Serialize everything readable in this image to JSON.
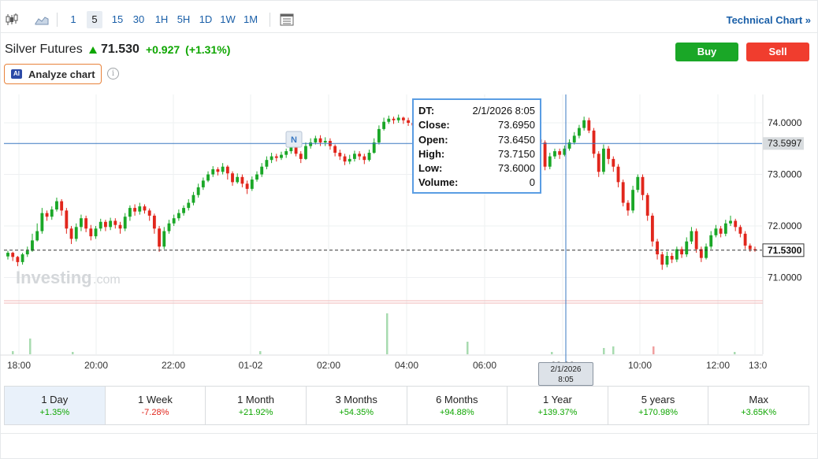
{
  "toolbar": {
    "intervals": [
      {
        "label": "1",
        "active": false
      },
      {
        "label": "5",
        "active": true
      },
      {
        "label": "15",
        "active": false
      },
      {
        "label": "30",
        "active": false
      },
      {
        "label": "1H",
        "active": false
      },
      {
        "label": "5H",
        "active": false
      },
      {
        "label": "1D",
        "active": false
      },
      {
        "label": "1W",
        "active": false
      },
      {
        "label": "1M",
        "active": false
      }
    ],
    "technical_chart_label": "Technical Chart »"
  },
  "header": {
    "name": "Silver Futures",
    "price": "71.530",
    "change": "+0.927",
    "change_pct": "(+1.31%)",
    "buy_label": "Buy",
    "sell_label": "Sell",
    "ai_badge": "AI",
    "analyze_label": "Analyze chart",
    "info_glyph": "i"
  },
  "tooltip": {
    "rows": [
      {
        "k": "DT:",
        "v": "2/1/2026 8:05"
      },
      {
        "k": "Close:",
        "v": "73.6950"
      },
      {
        "k": "Open:",
        "v": "73.6450"
      },
      {
        "k": "High:",
        "v": "73.7150"
      },
      {
        "k": "Low:",
        "v": "73.6000"
      },
      {
        "k": "Volume:",
        "v": "0"
      }
    ]
  },
  "cursor_label": {
    "line1": "2/1/2026",
    "line2": "8:05"
  },
  "chart_data": {
    "type": "candlestick",
    "y_ticks": [
      "74.0000",
      "73.0000",
      "72.0000",
      "71.0000"
    ],
    "y_tick_values": [
      74,
      73,
      72,
      71
    ],
    "ylim": [
      70.55,
      74.55
    ],
    "x_ticks": [
      "18:00",
      "20:00",
      "22:00",
      "01-02",
      "02:00",
      "04:00",
      "06:00",
      "08:00",
      "10:00",
      "12:00",
      "13:0"
    ],
    "cursor_price": "73.5997",
    "cursor_value": 73.5997,
    "last_price": "71.5300",
    "last_value": 71.53,
    "marker_label": "N",
    "watermark": "Investing",
    "watermark_suffix": ".com",
    "candles": [
      [
        71.41,
        71.48,
        71.35,
        71.52
      ],
      [
        71.48,
        71.4,
        71.32,
        71.5
      ],
      [
        71.4,
        71.3,
        71.22,
        71.42
      ],
      [
        71.3,
        71.45,
        71.25,
        71.48
      ],
      [
        71.45,
        71.52,
        71.4,
        71.6
      ],
      [
        71.52,
        71.72,
        71.5,
        71.85
      ],
      [
        71.72,
        71.9,
        71.7,
        72.05
      ],
      [
        71.9,
        72.25,
        71.85,
        72.35
      ],
      [
        72.25,
        72.18,
        72.1,
        72.3
      ],
      [
        72.18,
        72.32,
        72.12,
        72.38
      ],
      [
        72.32,
        72.48,
        72.28,
        72.55
      ],
      [
        72.48,
        72.3,
        72.2,
        72.52
      ],
      [
        72.3,
        71.95,
        71.85,
        72.35
      ],
      [
        71.95,
        71.75,
        71.65,
        72.0
      ],
      [
        71.75,
        71.98,
        71.7,
        72.05
      ],
      [
        71.98,
        72.15,
        71.9,
        72.22
      ],
      [
        72.15,
        71.95,
        71.88,
        72.2
      ],
      [
        71.95,
        71.8,
        71.72,
        72.02
      ],
      [
        71.8,
        71.95,
        71.75,
        72.0
      ],
      [
        71.95,
        72.08,
        71.9,
        72.14
      ],
      [
        72.08,
        71.98,
        71.9,
        72.12
      ],
      [
        71.98,
        72.1,
        71.92,
        72.16
      ],
      [
        72.1,
        72.02,
        71.95,
        72.15
      ],
      [
        72.02,
        71.95,
        71.85,
        72.08
      ],
      [
        71.95,
        72.18,
        71.9,
        72.25
      ],
      [
        72.18,
        72.35,
        72.1,
        72.4
      ],
      [
        72.35,
        72.28,
        72.2,
        72.42
      ],
      [
        72.28,
        72.38,
        72.22,
        72.45
      ],
      [
        72.38,
        72.3,
        72.24,
        72.42
      ],
      [
        72.3,
        72.2,
        72.1,
        72.34
      ],
      [
        72.2,
        71.95,
        71.85,
        72.24
      ],
      [
        71.95,
        71.6,
        71.5,
        72.0
      ],
      [
        71.6,
        71.9,
        71.55,
        71.98
      ],
      [
        71.9,
        72.05,
        71.85,
        72.12
      ],
      [
        72.05,
        72.15,
        72.0,
        72.22
      ],
      [
        72.15,
        72.25,
        72.1,
        72.32
      ],
      [
        72.25,
        72.35,
        72.2,
        72.4
      ],
      [
        72.35,
        72.45,
        72.3,
        72.52
      ],
      [
        72.45,
        72.6,
        72.4,
        72.66
      ],
      [
        72.6,
        72.75,
        72.55,
        72.82
      ],
      [
        72.75,
        72.88,
        72.7,
        72.94
      ],
      [
        72.88,
        73.0,
        72.85,
        73.06
      ],
      [
        73.0,
        73.1,
        72.95,
        73.16
      ],
      [
        73.1,
        73.05,
        72.98,
        73.14
      ],
      [
        73.05,
        73.15,
        73.0,
        73.22
      ],
      [
        73.15,
        73.02,
        72.9,
        73.18
      ],
      [
        73.02,
        72.85,
        72.78,
        73.06
      ],
      [
        72.85,
        72.95,
        72.82,
        73.02
      ],
      [
        72.95,
        72.82,
        72.75,
        73.0
      ],
      [
        72.82,
        72.72,
        72.62,
        72.88
      ],
      [
        72.72,
        72.9,
        72.68,
        72.96
      ],
      [
        72.9,
        73.0,
        72.86,
        73.06
      ],
      [
        73.0,
        73.15,
        72.95,
        73.22
      ],
      [
        73.15,
        73.28,
        73.1,
        73.35
      ],
      [
        73.28,
        73.35,
        73.22,
        73.42
      ],
      [
        73.35,
        73.32,
        73.25,
        73.4
      ],
      [
        73.32,
        73.38,
        73.28,
        73.44
      ],
      [
        73.38,
        73.45,
        73.32,
        73.5
      ],
      [
        73.45,
        73.52,
        73.4,
        73.58
      ],
      [
        73.52,
        73.4,
        73.35,
        73.55
      ],
      [
        73.4,
        73.3,
        73.22,
        73.45
      ],
      [
        73.3,
        73.55,
        73.28,
        73.62
      ],
      [
        73.55,
        73.62,
        73.5,
        73.7
      ],
      [
        73.62,
        73.7,
        73.58,
        73.75
      ],
      [
        73.7,
        73.62,
        73.55,
        73.76
      ],
      [
        73.62,
        73.65,
        73.55,
        73.72
      ],
      [
        73.65,
        73.55,
        73.48,
        73.7
      ],
      [
        73.55,
        73.42,
        73.35,
        73.58
      ],
      [
        73.42,
        73.35,
        73.28,
        73.48
      ],
      [
        73.35,
        73.25,
        73.18,
        73.4
      ],
      [
        73.25,
        73.3,
        73.2,
        73.38
      ],
      [
        73.3,
        73.4,
        73.25,
        73.46
      ],
      [
        73.4,
        73.35,
        73.28,
        73.45
      ],
      [
        73.35,
        73.28,
        73.2,
        73.4
      ],
      [
        73.28,
        73.42,
        73.25,
        73.48
      ],
      [
        73.42,
        73.62,
        73.4,
        73.7
      ],
      [
        73.62,
        73.88,
        73.58,
        73.95
      ],
      [
        73.88,
        74.02,
        73.85,
        74.1
      ],
      [
        74.02,
        74.08,
        73.98,
        74.14
      ],
      [
        74.08,
        74.05,
        73.98,
        74.12
      ],
      [
        74.05,
        74.1,
        74.0,
        74.16
      ],
      [
        74.1,
        74.05,
        73.98,
        74.12
      ],
      [
        74.05,
        74.0,
        73.94,
        74.1
      ],
      [
        74.0,
        73.95,
        73.9,
        74.05
      ],
      [
        73.95,
        74.02,
        73.92,
        74.06
      ],
      [
        74.02,
        73.98,
        73.92,
        74.06
      ],
      [
        73.98,
        73.95,
        73.88,
        74.02
      ],
      [
        73.95,
        73.92,
        73.86,
        74.0
      ],
      [
        73.92,
        73.96,
        73.88,
        74.0
      ],
      [
        73.96,
        73.98,
        73.9,
        74.04
      ],
      [
        73.98,
        73.95,
        73.88,
        74.02
      ],
      [
        73.95,
        73.98,
        73.9,
        74.02
      ],
      [
        73.98,
        74.0,
        73.94,
        74.05
      ],
      [
        74.0,
        73.96,
        73.9,
        74.04
      ],
      [
        73.96,
        73.92,
        73.86,
        74.0
      ],
      [
        73.92,
        73.88,
        73.8,
        73.96
      ],
      [
        73.88,
        73.8,
        73.72,
        73.92
      ],
      [
        73.8,
        73.75,
        73.68,
        73.84
      ],
      [
        73.75,
        73.7,
        73.62,
        73.8
      ],
      [
        73.7,
        73.64,
        73.58,
        73.75
      ],
      [
        73.64,
        73.6,
        73.52,
        73.7
      ],
      [
        73.6,
        73.65,
        73.55,
        73.72
      ],
      [
        73.65,
        73.6,
        73.52,
        73.7
      ],
      [
        73.6,
        73.55,
        73.48,
        73.64
      ],
      [
        73.55,
        73.4,
        73.32,
        73.58
      ],
      [
        73.4,
        73.55,
        73.36,
        73.6
      ],
      [
        73.55,
        73.62,
        73.5,
        73.68
      ],
      [
        73.62,
        73.55,
        73.48,
        73.66
      ],
      [
        73.55,
        73.68,
        73.52,
        73.72
      ],
      [
        73.68,
        73.62,
        73.55,
        73.72
      ],
      [
        73.62,
        73.15,
        73.08,
        73.66
      ],
      [
        73.15,
        73.35,
        73.1,
        73.42
      ],
      [
        73.35,
        73.45,
        73.3,
        73.5
      ],
      [
        73.45,
        73.38,
        73.3,
        73.5
      ],
      [
        73.38,
        73.5,
        73.35,
        73.56
      ],
      [
        73.5,
        73.62,
        73.46,
        73.68
      ],
      [
        73.62,
        73.75,
        73.58,
        73.82
      ],
      [
        73.75,
        73.9,
        73.7,
        73.96
      ],
      [
        73.9,
        74.05,
        73.85,
        74.12
      ],
      [
        74.05,
        73.85,
        73.8,
        74.1
      ],
      [
        73.85,
        73.4,
        73.32,
        73.9
      ],
      [
        73.4,
        73.05,
        72.95,
        73.45
      ],
      [
        73.05,
        73.5,
        73.0,
        73.58
      ],
      [
        73.5,
        73.3,
        73.2,
        73.55
      ],
      [
        73.3,
        73.15,
        73.05,
        73.35
      ],
      [
        73.15,
        72.85,
        72.75,
        73.2
      ],
      [
        72.85,
        72.45,
        72.38,
        72.9
      ],
      [
        72.45,
        72.3,
        72.2,
        72.5
      ],
      [
        72.3,
        72.7,
        72.25,
        72.78
      ],
      [
        72.7,
        72.95,
        72.65,
        73.0
      ],
      [
        72.95,
        72.6,
        72.5,
        73.0
      ],
      [
        72.6,
        72.2,
        72.1,
        72.64
      ],
      [
        72.2,
        71.7,
        71.6,
        72.25
      ],
      [
        71.7,
        71.45,
        71.35,
        71.75
      ],
      [
        71.45,
        71.25,
        71.15,
        71.5
      ],
      [
        71.25,
        71.42,
        71.2,
        71.5
      ],
      [
        71.42,
        71.35,
        71.28,
        71.48
      ],
      [
        71.35,
        71.55,
        71.3,
        71.6
      ],
      [
        71.55,
        71.45,
        71.38,
        71.6
      ],
      [
        71.45,
        71.7,
        71.4,
        71.78
      ],
      [
        71.7,
        71.9,
        71.65,
        71.98
      ],
      [
        71.9,
        71.55,
        71.48,
        71.95
      ],
      [
        71.55,
        71.38,
        71.3,
        71.6
      ],
      [
        71.38,
        71.6,
        71.35,
        71.66
      ],
      [
        71.6,
        71.82,
        71.55,
        71.9
      ],
      [
        71.82,
        71.95,
        71.78,
        72.02
      ],
      [
        71.95,
        71.85,
        71.78,
        72.0
      ],
      [
        71.85,
        72.05,
        71.8,
        72.12
      ],
      [
        72.05,
        72.1,
        72.0,
        72.2
      ],
      [
        72.1,
        71.98,
        71.9,
        72.14
      ],
      [
        71.98,
        71.85,
        71.78,
        72.02
      ],
      [
        71.85,
        71.62,
        71.55,
        71.9
      ],
      [
        71.62,
        71.55,
        71.5,
        71.66
      ],
      [
        71.55,
        71.53,
        71.5,
        71.6
      ]
    ],
    "volumes": [
      0,
      0,
      0,
      0,
      0,
      0,
      4,
      0,
      0,
      0,
      0,
      0,
      0,
      0,
      0,
      0,
      0,
      0,
      0,
      0,
      0,
      0,
      0,
      0,
      0,
      0,
      0,
      0,
      0,
      0,
      0,
      0,
      0,
      0,
      0,
      0,
      0,
      0,
      0,
      0,
      0,
      0,
      0,
      0,
      0,
      0,
      0,
      0,
      0,
      0,
      0,
      0,
      0,
      0,
      0,
      0,
      0,
      0,
      0,
      0,
      0,
      0,
      0,
      0,
      0,
      0,
      0,
      0,
      0,
      0,
      0,
      0,
      0,
      0,
      0,
      0,
      0,
      0,
      0,
      0,
      0,
      0,
      0,
      0,
      0,
      0,
      0,
      0,
      0,
      0,
      0,
      0,
      0,
      0,
      0,
      0,
      0,
      0,
      0,
      0,
      0,
      0,
      0,
      0,
      0,
      0,
      0,
      0,
      0,
      0,
      0,
      0,
      0,
      0,
      0,
      0,
      0,
      0,
      0,
      0,
      0,
      0,
      0,
      0,
      0,
      0,
      0,
      0,
      0,
      0,
      0,
      0,
      0,
      0,
      0,
      0,
      0,
      0,
      0,
      0,
      0,
      0,
      0,
      0,
      0,
      0,
      0,
      0,
      0,
      0,
      0,
      0,
      0,
      0
    ]
  },
  "periods": [
    {
      "label": "1 Day",
      "value": "+1.35%",
      "active": true,
      "dir": "pos"
    },
    {
      "label": "1 Week",
      "value": "-7.28%",
      "active": false,
      "dir": "neg"
    },
    {
      "label": "1 Month",
      "value": "+21.92%",
      "active": false,
      "dir": "pos"
    },
    {
      "label": "3 Months",
      "value": "+54.35%",
      "active": false,
      "dir": "pos"
    },
    {
      "label": "6 Months",
      "value": "+94.88%",
      "active": false,
      "dir": "pos"
    },
    {
      "label": "1 Year",
      "value": "+139.37%",
      "active": false,
      "dir": "pos"
    },
    {
      "label": "5 years",
      "value": "+170.98%",
      "active": false,
      "dir": "pos"
    },
    {
      "label": "Max",
      "value": "+3.65K%",
      "active": false,
      "dir": "pos"
    }
  ],
  "colors": {
    "up": "#1aa727",
    "down": "#e1261c",
    "link": "#1a5fa8",
    "cursor": "#3a78c2"
  }
}
